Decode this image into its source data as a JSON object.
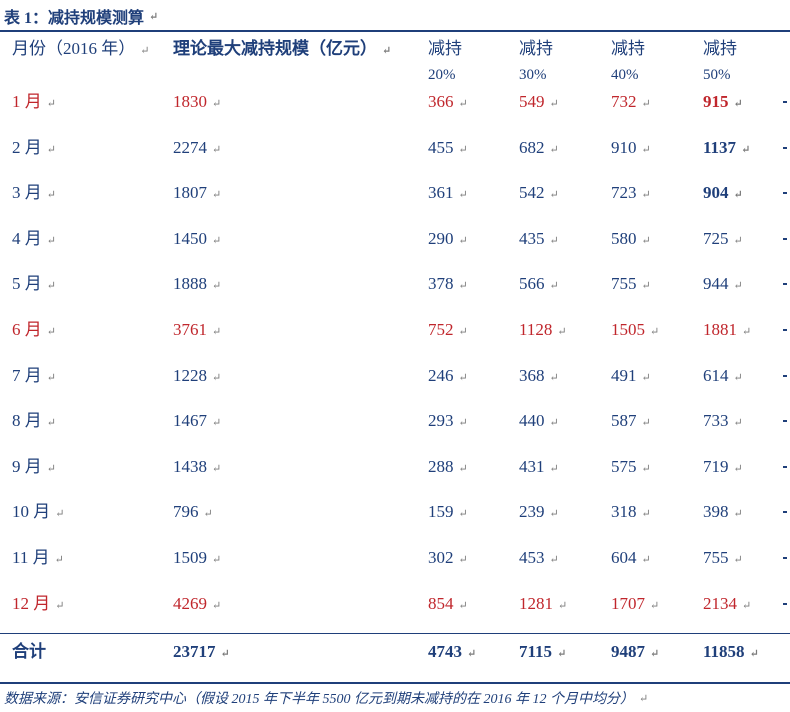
{
  "title": "表 1：减持规模测算",
  "header": {
    "month": "月份（2016 年）",
    "max_scale": "理论最大减持规模（亿元）",
    "reduce": "减持",
    "pcts": [
      "20%",
      "30%",
      "40%",
      "50%"
    ]
  },
  "rows": [
    {
      "month": "1 月",
      "max": "1830",
      "v20": "366",
      "v30": "549",
      "v40": "732",
      "v50": "915"
    },
    {
      "month": "2 月",
      "max": "2274",
      "v20": "455",
      "v30": "682",
      "v40": "910",
      "v50": "1137"
    },
    {
      "month": "3 月",
      "max": "1807",
      "v20": "361",
      "v30": "542",
      "v40": "723",
      "v50": "904"
    },
    {
      "month": "4 月",
      "max": "1450",
      "v20": "290",
      "v30": "435",
      "v40": "580",
      "v50": "725"
    },
    {
      "month": "5 月",
      "max": "1888",
      "v20": "378",
      "v30": "566",
      "v40": "755",
      "v50": "944"
    },
    {
      "month": "6 月",
      "max": "3761",
      "v20": "752",
      "v30": "1128",
      "v40": "1505",
      "v50": "1881"
    },
    {
      "month": "7 月",
      "max": "1228",
      "v20": "246",
      "v30": "368",
      "v40": "491",
      "v50": "614"
    },
    {
      "month": "8 月",
      "max": "1467",
      "v20": "293",
      "v30": "440",
      "v40": "587",
      "v50": "733"
    },
    {
      "month": "9 月",
      "max": "1438",
      "v20": "288",
      "v30": "431",
      "v40": "575",
      "v50": "719"
    },
    {
      "month": "10 月",
      "max": "796",
      "v20": "159",
      "v30": "239",
      "v40": "318",
      "v50": "398"
    },
    {
      "month": "11 月",
      "max": "1509",
      "v20": "302",
      "v30": "453",
      "v40": "604",
      "v50": "755"
    },
    {
      "month": "12 月",
      "max": "4269",
      "v20": "854",
      "v30": "1281",
      "v40": "1707",
      "v50": "2134"
    }
  ],
  "total": {
    "month": "合计",
    "max": "23717",
    "v20": "4743",
    "v30": "7115",
    "v40": "9487",
    "v50": "11858"
  },
  "source": "数据来源：安信证券研究中心（假设 2015 年下半年 5500 亿元到期未减持的在 2016 年 12 个月中均分）",
  "colors": {
    "blue": "#1f3f7a",
    "red": "#c0262c"
  }
}
